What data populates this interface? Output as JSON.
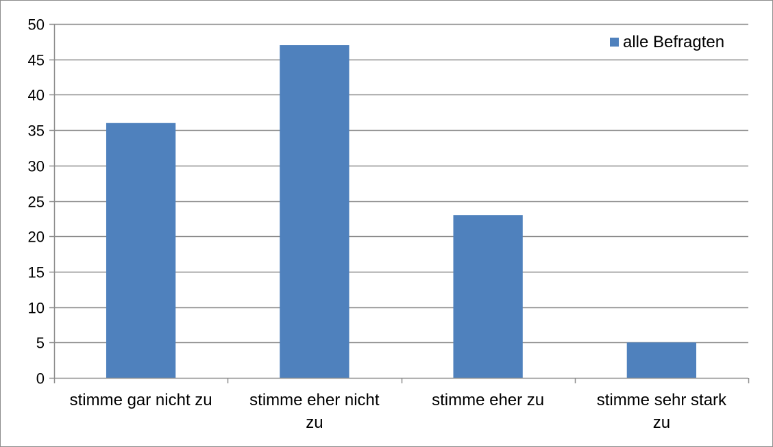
{
  "chart_data": {
    "type": "bar",
    "categories": [
      [
        "stimme gar nicht zu"
      ],
      [
        "stimme eher nicht",
        "zu"
      ],
      [
        "stimme eher zu"
      ],
      [
        "stimme sehr stark",
        "zu"
      ]
    ],
    "series": [
      {
        "name": "alle Befragten",
        "values": [
          36,
          47,
          23,
          5
        ]
      }
    ],
    "ylim": [
      0,
      50
    ],
    "yticks": [
      0,
      5,
      10,
      15,
      20,
      25,
      30,
      35,
      40,
      45,
      50
    ],
    "grid": true,
    "legend_position": "top-right",
    "colors": {
      "bar": "#4f81bd",
      "grid": "#8c8c8c",
      "axis": "#8c8c8c",
      "text": "#000000"
    }
  }
}
